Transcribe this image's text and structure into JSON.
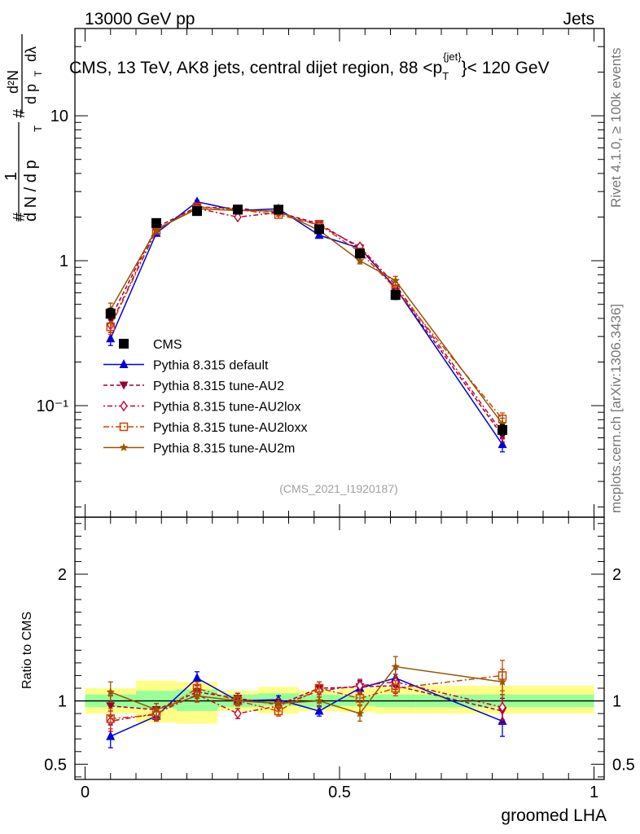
{
  "header": {
    "energy_label": "13000 GeV pp",
    "category_label": "Jets"
  },
  "side_labels": {
    "rivet": "Rivet 4.1.0, ≥ 100k events",
    "mcplots": "mcplots.cern.ch [arXiv:1306.3436]"
  },
  "chart_data": [
    {
      "type": "line",
      "panel": "main",
      "title": "CMS, 13 TeV, AK8 jets, central dijet region, 88 <p",
      "title_sup": "{jet}",
      "title_sub": "T",
      "title_end": "}< 120 GeV",
      "ylabel_parts": [
        "#",
        "1",
        "d N / d p",
        "T",
        "#",
        "d²N",
        "d p",
        "T",
        "dλ"
      ],
      "yscale": "log",
      "ylim": [
        0.017,
        40
      ],
      "xlim": [
        -0.02,
        1.02
      ],
      "ytick_labels": [
        "10⁻¹",
        "1",
        "10"
      ],
      "ytick_values": [
        0.1,
        1,
        10
      ],
      "watermark": "(CMS_2021_I1920187)",
      "x": [
        0.05,
        0.14,
        0.22,
        0.3,
        0.38,
        0.46,
        0.54,
        0.61,
        0.82
      ],
      "series": [
        {
          "name": "CMS",
          "color": "#000000",
          "marker": "square",
          "dash": "none",
          "values": [
            0.43,
            1.82,
            2.2,
            2.25,
            2.25,
            1.65,
            1.12,
            0.58,
            0.068
          ],
          "errors": [
            0.04,
            0.1,
            0.1,
            0.1,
            0.1,
            0.08,
            0.06,
            0.04,
            0.006
          ]
        },
        {
          "name": "Pythia 8.315 default",
          "color": "#0000dd",
          "marker": "triangle-up",
          "dash": "none",
          "values": [
            0.29,
            1.55,
            2.55,
            2.22,
            2.28,
            1.5,
            1.22,
            0.65,
            0.054
          ],
          "errors": [
            0.03,
            0.05,
            0.06,
            0.05,
            0.05,
            0.04,
            0.04,
            0.03,
            0.006
          ]
        },
        {
          "name": "Pythia 8.315 tune-AU2",
          "color": "#990033",
          "marker": "triangle-down",
          "dash": "5,3",
          "values": [
            0.4,
            1.7,
            2.35,
            2.3,
            2.15,
            1.8,
            1.22,
            0.65,
            0.062
          ],
          "errors": [
            0.04,
            0.05,
            0.06,
            0.05,
            0.05,
            0.05,
            0.05,
            0.03,
            0.006
          ]
        },
        {
          "name": "Pythia 8.315 tune-AU2lox",
          "color": "#cc0033",
          "marker": "diamond",
          "dash": "2,3,6,3",
          "values": [
            0.36,
            1.65,
            2.3,
            2.0,
            2.15,
            1.75,
            1.25,
            0.68,
            0.065
          ],
          "errors": [
            0.04,
            0.05,
            0.06,
            0.05,
            0.05,
            0.05,
            0.05,
            0.03,
            0.006
          ]
        },
        {
          "name": "Pythia 8.315 tune-AU2loxx",
          "color": "#cc4400",
          "marker": "square-open",
          "dash": "7,3,2,3",
          "values": [
            0.35,
            1.62,
            2.35,
            2.25,
            2.08,
            1.77,
            1.15,
            0.64,
            0.081
          ],
          "errors": [
            0.04,
            0.05,
            0.06,
            0.05,
            0.05,
            0.05,
            0.05,
            0.03,
            0.008
          ]
        },
        {
          "name": "Pythia 8.315 tune-AU2m",
          "color": "#995500",
          "marker": "star",
          "dash": "none",
          "values": [
            0.46,
            1.65,
            2.28,
            2.22,
            2.2,
            1.62,
            1.0,
            0.73,
            0.075
          ],
          "errors": [
            0.05,
            0.05,
            0.06,
            0.05,
            0.05,
            0.05,
            0.05,
            0.05,
            0.007
          ]
        }
      ],
      "legend": {
        "position": "center-left"
      }
    },
    {
      "type": "line",
      "panel": "ratio",
      "ylabel": "Ratio to CMS",
      "xlabel": "groomed LHA",
      "ylim": [
        0.38,
        2.45
      ],
      "xlim": [
        -0.02,
        1.02
      ],
      "xtick_labels": [
        "0",
        "0.5",
        "1"
      ],
      "xtick_values": [
        0,
        0.5,
        1
      ],
      "ytick_labels": [
        "0.5",
        "1",
        "2"
      ],
      "ytick_values": [
        0.5,
        1,
        2
      ],
      "bands": {
        "edges": [
          0.0,
          0.1,
          0.18,
          0.26,
          0.34,
          0.42,
          0.5,
          0.57,
          0.65,
          1.0
        ],
        "stat_lo": [
          0.95,
          0.94,
          0.92,
          0.95,
          0.96,
          0.95,
          0.96,
          0.95,
          0.95
        ],
        "stat_hi": [
          1.05,
          1.08,
          1.09,
          1.05,
          1.06,
          1.05,
          1.04,
          1.05,
          1.05
        ],
        "syst_lo": [
          0.9,
          0.83,
          0.82,
          0.92,
          0.9,
          0.92,
          0.91,
          0.9,
          0.9
        ],
        "syst_hi": [
          1.1,
          1.16,
          1.15,
          1.08,
          1.11,
          1.08,
          1.1,
          1.11,
          1.12
        ],
        "stat_color": "#99ff99",
        "syst_color": "#ffff88"
      },
      "x": [
        0.05,
        0.14,
        0.22,
        0.3,
        0.38,
        0.46,
        0.54,
        0.61,
        0.82
      ],
      "series": [
        {
          "name": "Pythia 8.315 default",
          "color": "#0000dd",
          "marker": "triangle-up",
          "dash": "none",
          "values": [
            0.72,
            0.88,
            1.18,
            1.0,
            1.01,
            0.92,
            1.1,
            1.18,
            0.84
          ],
          "errors": [
            0.09,
            0.04,
            0.05,
            0.03,
            0.03,
            0.04,
            0.05,
            0.07,
            0.12
          ]
        },
        {
          "name": "Pythia 8.315 tune-AU2",
          "color": "#990033",
          "marker": "triangle-down",
          "dash": "5,3",
          "values": [
            0.96,
            0.93,
            1.07,
            1.02,
            0.97,
            1.1,
            1.11,
            1.12,
            0.92
          ],
          "errors": [
            0.08,
            0.05,
            0.05,
            0.04,
            0.03,
            0.05,
            0.05,
            0.06,
            0.1
          ]
        },
        {
          "name": "Pythia 8.315 tune-AU2lox",
          "color": "#cc0033",
          "marker": "diamond",
          "dash": "2,3,6,3",
          "values": [
            0.84,
            0.9,
            1.05,
            0.9,
            0.96,
            1.08,
            1.12,
            1.15,
            0.95
          ],
          "errors": [
            0.08,
            0.05,
            0.05,
            0.04,
            0.04,
            0.05,
            0.05,
            0.06,
            0.1
          ]
        },
        {
          "name": "Pythia 8.315 tune-AU2loxx",
          "color": "#cc4400",
          "marker": "square-open",
          "dash": "7,3,2,3",
          "values": [
            0.86,
            0.89,
            1.1,
            1.0,
            0.92,
            1.1,
            1.02,
            1.1,
            1.2
          ],
          "errors": [
            0.08,
            0.05,
            0.05,
            0.04,
            0.04,
            0.05,
            0.05,
            0.06,
            0.12
          ]
        },
        {
          "name": "Pythia 8.315 tune-AU2m",
          "color": "#995500",
          "marker": "star",
          "dash": "none",
          "values": [
            1.07,
            0.93,
            1.04,
            1.0,
            0.98,
            1.0,
            0.9,
            1.27,
            1.15
          ],
          "errors": [
            0.08,
            0.05,
            0.05,
            0.04,
            0.04,
            0.05,
            0.06,
            0.08,
            0.1
          ]
        }
      ]
    }
  ]
}
